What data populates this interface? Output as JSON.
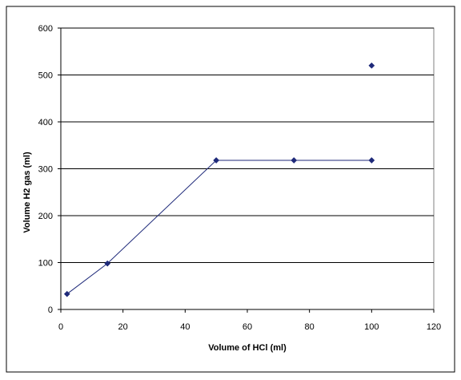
{
  "chart_data": {
    "type": "scatter",
    "title": "",
    "xlabel": "Volume of HCl (ml)",
    "ylabel": "Volume H2 gas (ml)",
    "xlim": [
      0,
      120
    ],
    "ylim": [
      0,
      600
    ],
    "xticks": [
      0,
      20,
      40,
      60,
      80,
      100,
      120
    ],
    "yticks": [
      0,
      100,
      200,
      300,
      400,
      500,
      600
    ],
    "grid": "horizontal major gridlines",
    "legend": "none",
    "series": [
      {
        "marker": "diamond",
        "color": "#1f2a7a",
        "connected": true,
        "points": [
          {
            "x": 2,
            "y": 33
          },
          {
            "x": 15,
            "y": 98
          },
          {
            "x": 50,
            "y": 318
          },
          {
            "x": 75,
            "y": 318
          },
          {
            "x": 100,
            "y": 318
          }
        ]
      },
      {
        "marker": "diamond",
        "color": "#1f2a7a",
        "connected": false,
        "points": [
          {
            "x": 100,
            "y": 520
          }
        ]
      }
    ]
  }
}
